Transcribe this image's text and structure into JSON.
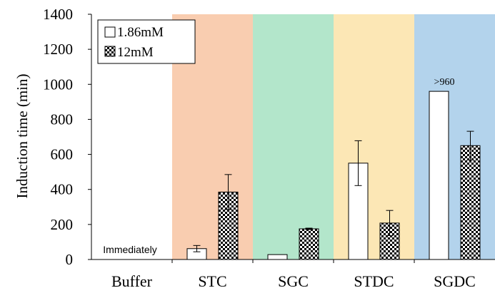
{
  "chart_data": {
    "type": "bar",
    "categories": [
      "Buffer",
      "STC",
      "SGC",
      "STDC",
      "SGDC"
    ],
    "ylabel": "Induction time (min)",
    "ylim": [
      0,
      1400
    ],
    "yticks": [
      "0",
      "200",
      "400",
      "600",
      "800",
      "1000",
      "1200",
      "1400"
    ],
    "series": [
      {
        "name": "1.86mM",
        "values": [
          0,
          62,
          28,
          550,
          960
        ],
        "errors": [
          0,
          18,
          0,
          128,
          0
        ]
      },
      {
        "name": "12mM",
        "values": [
          0,
          385,
          175,
          208,
          650
        ],
        "errors": [
          0,
          100,
          4,
          72,
          82
        ]
      }
    ],
    "category_backgrounds": [
      "#ffffff",
      "#f9cdb0",
      "#b3e6cb",
      "#fce7b5",
      "#b3d3ec"
    ],
    "legend_position": "top-left",
    "annotations": [
      {
        "category": "Buffer",
        "text": "Immediately"
      },
      {
        "category": "SGDC",
        "series": "1.86mM",
        "text": ">960"
      }
    ]
  }
}
